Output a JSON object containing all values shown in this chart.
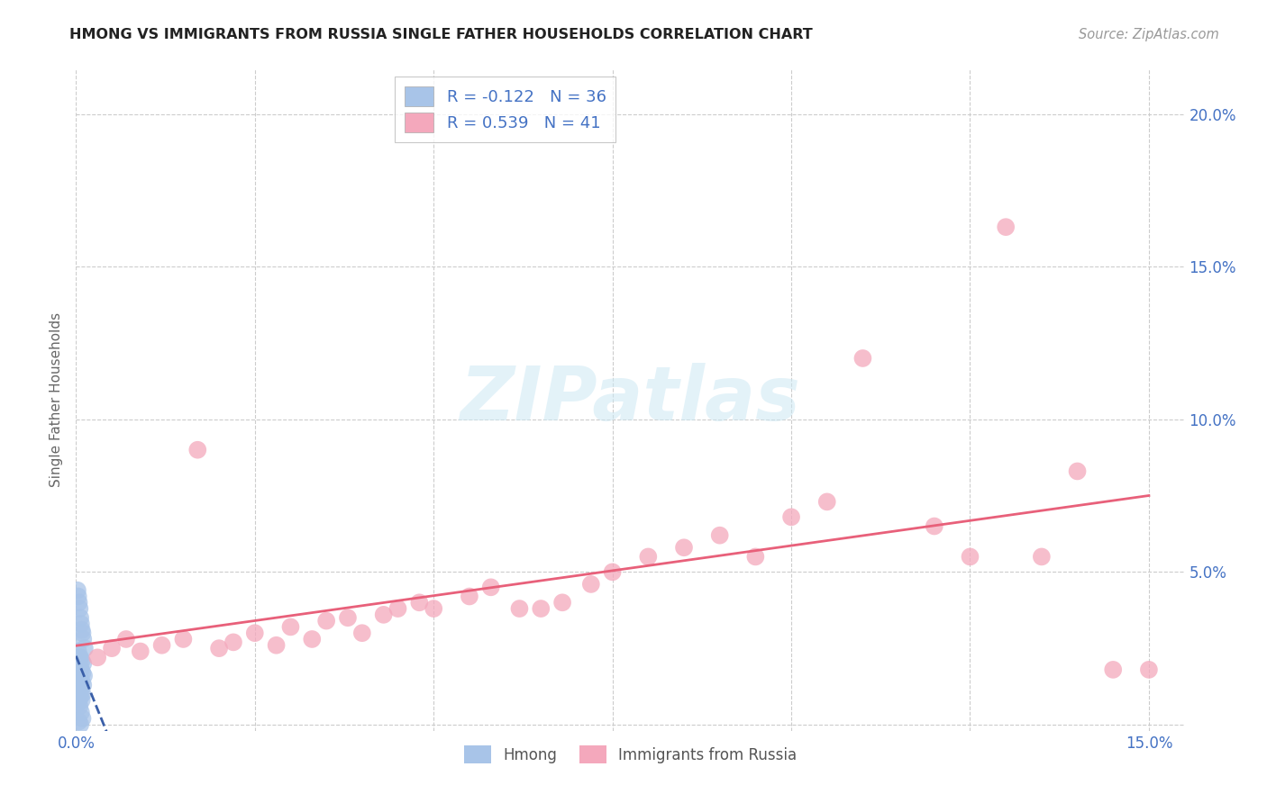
{
  "title": "HMONG VS IMMIGRANTS FROM RUSSIA SINGLE FATHER HOUSEHOLDS CORRELATION CHART",
  "source": "Source: ZipAtlas.com",
  "ylabel": "Single Father Households",
  "xlim": [
    0.0,
    0.155
  ],
  "ylim": [
    -0.002,
    0.215
  ],
  "hmong_R": -0.122,
  "hmong_N": 36,
  "russia_R": 0.539,
  "russia_N": 41,
  "hmong_color": "#a8c4e8",
  "russia_color": "#f4a8bc",
  "hmong_line_color": "#3a5fa8",
  "russia_line_color": "#e8607a",
  "legend_label_1": "Hmong",
  "legend_label_2": "Immigrants from Russia",
  "watermark_text": "ZIPatlas",
  "hmong_x": [
    0.0002,
    0.0003,
    0.0004,
    0.0005,
    0.0006,
    0.0007,
    0.0008,
    0.0009,
    0.001,
    0.0012,
    0.0003,
    0.0004,
    0.0006,
    0.0008,
    0.001,
    0.0005,
    0.0007,
    0.0009,
    0.0011,
    0.0004,
    0.0006,
    0.0008,
    0.001,
    0.0003,
    0.0005,
    0.0007,
    0.0009,
    0.0004,
    0.0006,
    0.0008,
    0.0003,
    0.0005,
    0.0007,
    0.0009,
    0.0004,
    0.0006
  ],
  "hmong_y": [
    0.044,
    0.042,
    0.04,
    0.038,
    0.035,
    0.033,
    0.031,
    0.03,
    0.028,
    0.025,
    0.024,
    0.022,
    0.022,
    0.021,
    0.02,
    0.019,
    0.018,
    0.017,
    0.016,
    0.015,
    0.015,
    0.014,
    0.013,
    0.012,
    0.012,
    0.011,
    0.01,
    0.01,
    0.009,
    0.008,
    0.007,
    0.006,
    0.004,
    0.002,
    0.001,
    0.0
  ],
  "russia_x": [
    0.003,
    0.005,
    0.007,
    0.009,
    0.012,
    0.015,
    0.017,
    0.02,
    0.022,
    0.025,
    0.028,
    0.03,
    0.033,
    0.035,
    0.038,
    0.04,
    0.043,
    0.045,
    0.048,
    0.05,
    0.055,
    0.058,
    0.062,
    0.065,
    0.068,
    0.072,
    0.075,
    0.08,
    0.085,
    0.09,
    0.095,
    0.1,
    0.105,
    0.11,
    0.12,
    0.125,
    0.13,
    0.135,
    0.14,
    0.145,
    0.15
  ],
  "russia_y": [
    0.022,
    0.025,
    0.028,
    0.024,
    0.026,
    0.028,
    0.09,
    0.025,
    0.027,
    0.03,
    0.026,
    0.032,
    0.028,
    0.034,
    0.035,
    0.03,
    0.036,
    0.038,
    0.04,
    0.038,
    0.042,
    0.045,
    0.038,
    0.038,
    0.04,
    0.046,
    0.05,
    0.055,
    0.058,
    0.062,
    0.055,
    0.068,
    0.073,
    0.12,
    0.065,
    0.055,
    0.163,
    0.055,
    0.083,
    0.018,
    0.018
  ]
}
